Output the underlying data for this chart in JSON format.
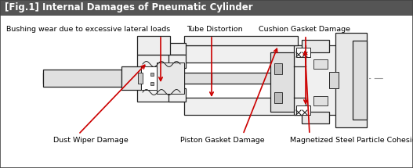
{
  "title": "[Fig.1] Internal Damages of Pneumatic Cylinder",
  "title_bg": "#555555",
  "title_color": "#ffffff",
  "border_color": "#444444",
  "bg_color": "#ffffff",
  "arrow_color": "#cc0000",
  "line_color": "#222222",
  "centerline_color": "#999999",
  "figsize": [
    5.27,
    2.15
  ],
  "dpi": 100,
  "labels": {
    "bushing": "Bushing wear due to excessive lateral loads",
    "tube": "Tube Distortion",
    "cushion": "Cushion Gasket Damage",
    "dust": "Dust Wiper Damage",
    "piston": "Piston Gasket Damage",
    "magnet": "Magnetized Steel Particle Cohesion"
  }
}
